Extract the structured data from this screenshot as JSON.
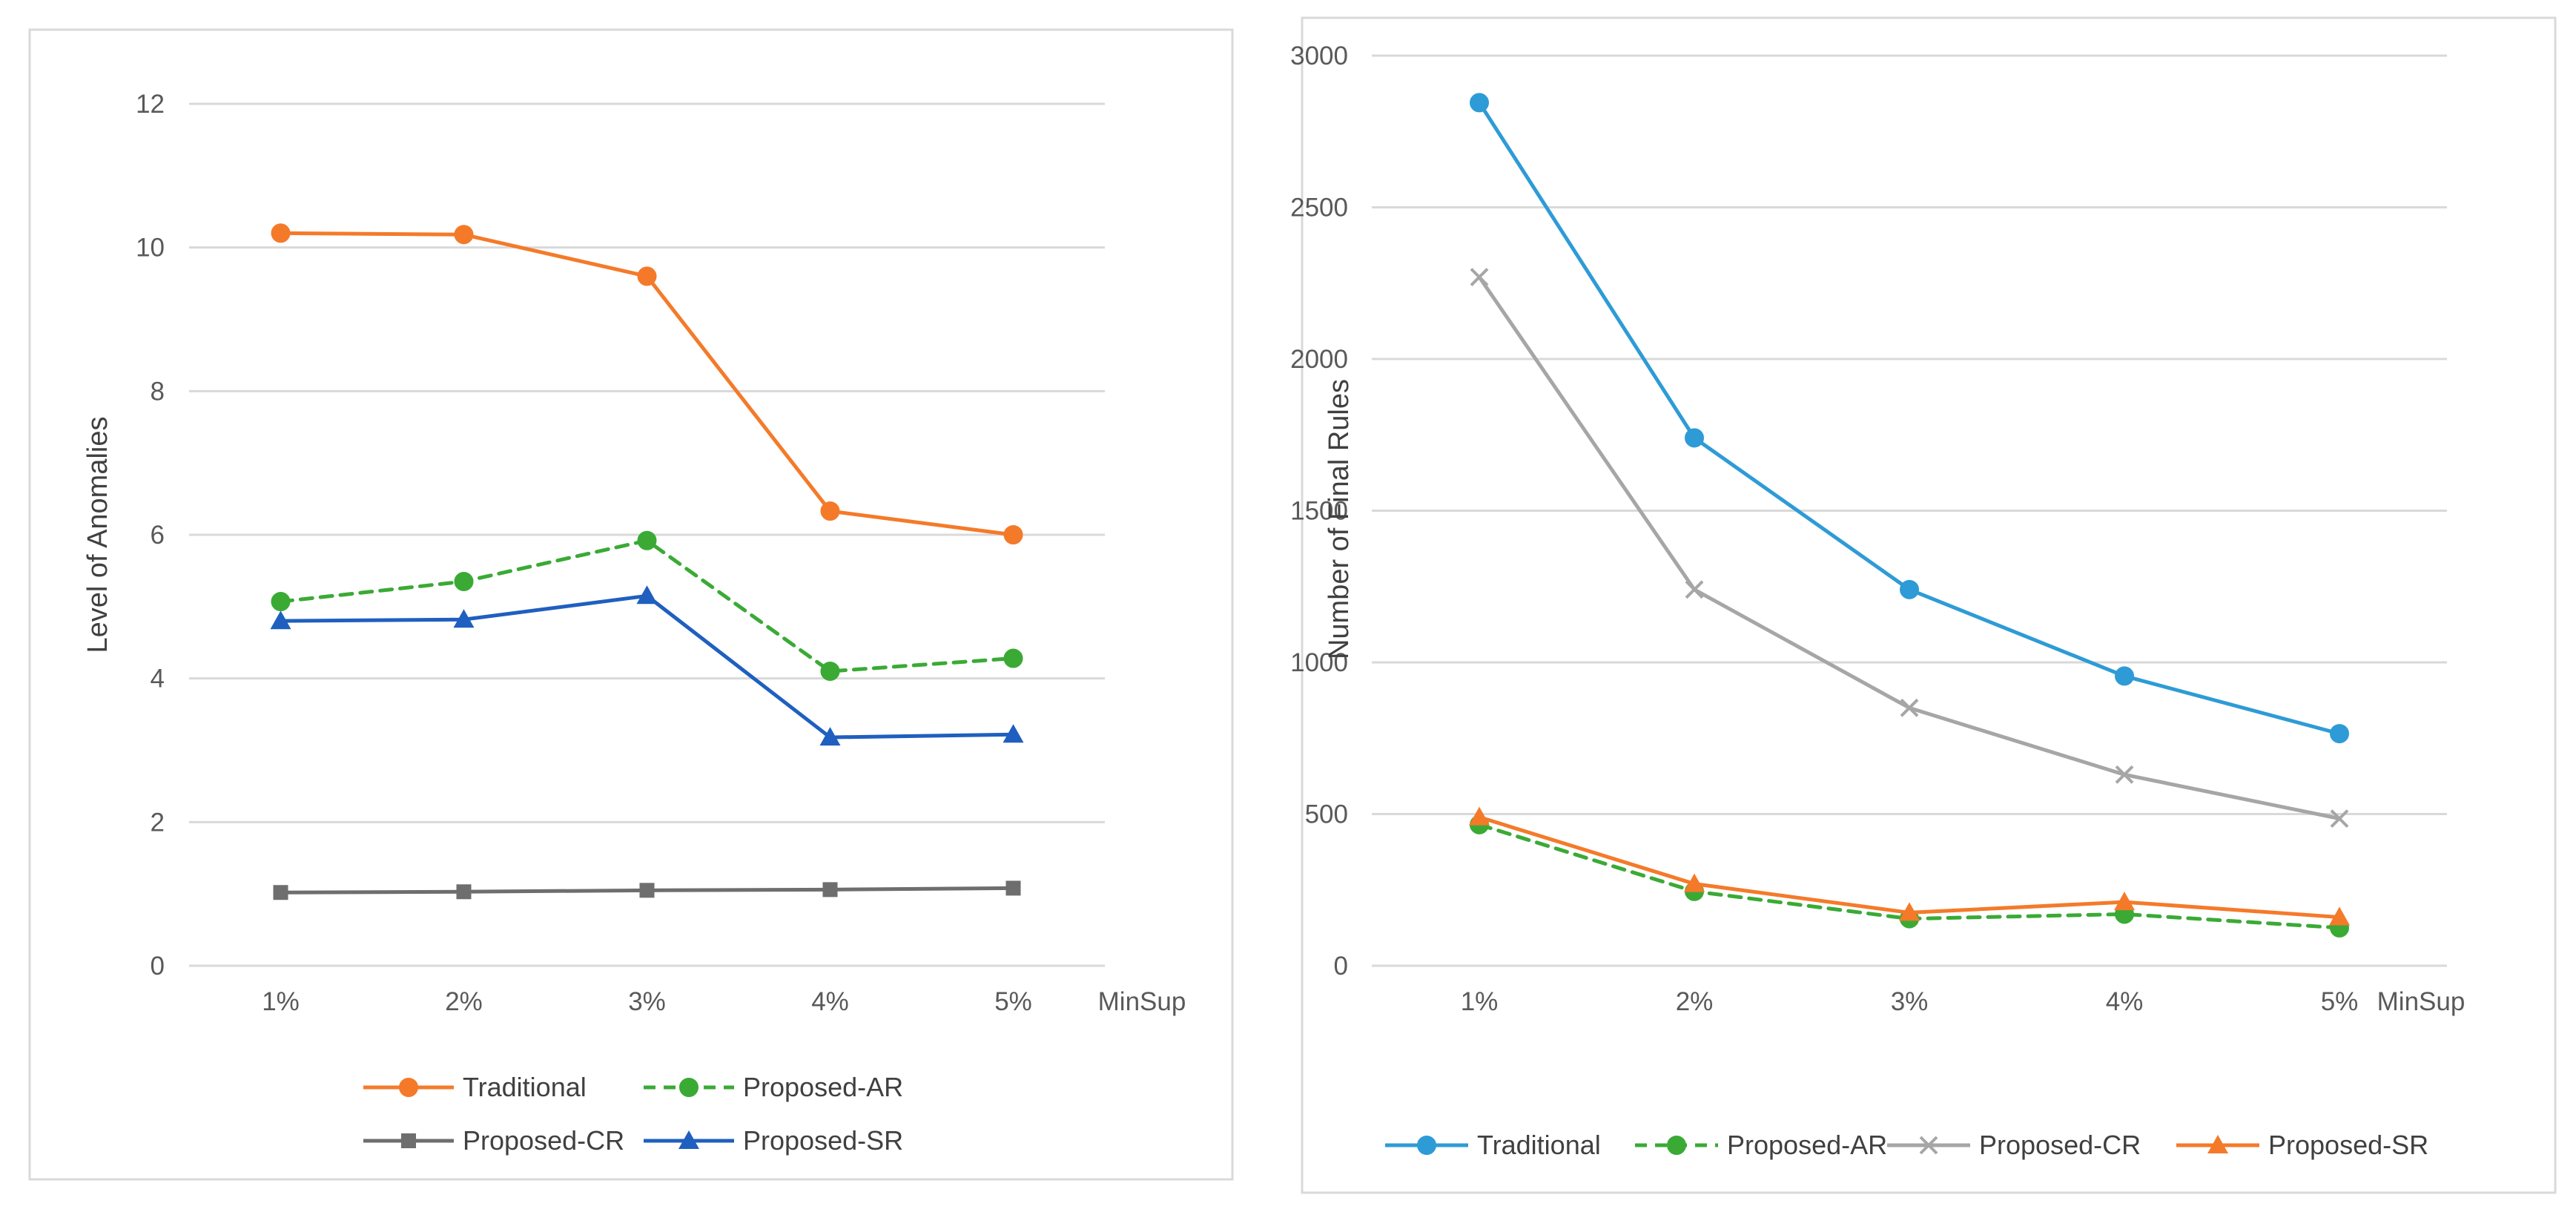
{
  "chart_data": [
    {
      "type": "line",
      "title": "",
      "xlabel": "MinSup",
      "ylabel": "Level of Anomalies",
      "categories": [
        "1%",
        "2%",
        "3%",
        "4%",
        "5%"
      ],
      "ylim": [
        0,
        12
      ],
      "yticks": [
        0,
        2,
        4,
        6,
        8,
        10,
        12
      ],
      "grid": true,
      "legend_position": "bottom",
      "series": [
        {
          "name": "Traditional",
          "values": [
            10.2,
            10.18,
            9.6,
            6.33,
            6.0
          ],
          "color": "#F47A2A",
          "dash": "solid",
          "marker": "circle"
        },
        {
          "name": "Proposed-AR",
          "values": [
            5.07,
            5.35,
            5.92,
            4.1,
            4.28
          ],
          "color": "#3AAA35",
          "dash": "dashed",
          "marker": "circle"
        },
        {
          "name": "Proposed-CR",
          "values": [
            1.02,
            1.03,
            1.05,
            1.06,
            1.08
          ],
          "color": "#6E6E6E",
          "dash": "solid",
          "marker": "square"
        },
        {
          "name": "Proposed-SR",
          "values": [
            4.8,
            4.82,
            5.15,
            3.18,
            3.22
          ],
          "color": "#1F5FBF",
          "dash": "solid",
          "marker": "triangle"
        }
      ]
    },
    {
      "type": "line",
      "title": "",
      "xlabel": "MinSup",
      "ylabel": "Number of Final Rules",
      "categories": [
        "1%",
        "2%",
        "3%",
        "4%",
        "5%"
      ],
      "ylim": [
        0,
        3000
      ],
      "yticks": [
        0,
        500,
        1000,
        1500,
        2000,
        2500,
        3000
      ],
      "grid": true,
      "legend_position": "bottom",
      "series": [
        {
          "name": "Traditional",
          "values": [
            2845,
            1740,
            1240,
            955,
            765
          ],
          "color": "#2E9BD6",
          "dash": "solid",
          "marker": "circle"
        },
        {
          "name": "Proposed-AR",
          "values": [
            465,
            245,
            155,
            170,
            125
          ],
          "color": "#3AAA35",
          "dash": "dashed",
          "marker": "circle"
        },
        {
          "name": "Proposed-CR",
          "values": [
            2270,
            1240,
            850,
            630,
            485
          ],
          "color": "#A6A6A6",
          "dash": "solid",
          "marker": "x"
        },
        {
          "name": "Proposed-SR",
          "values": [
            490,
            270,
            175,
            210,
            160
          ],
          "color": "#F47A2A",
          "dash": "solid",
          "marker": "triangle"
        }
      ]
    }
  ]
}
